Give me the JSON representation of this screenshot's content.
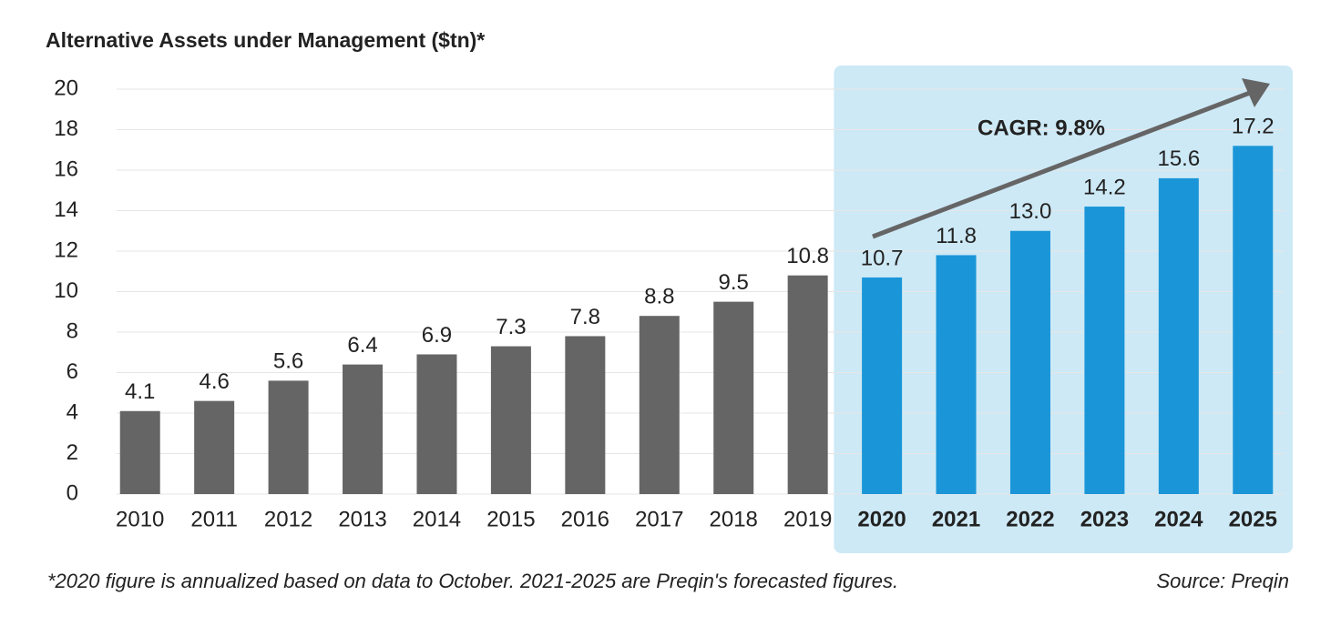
{
  "chart_data": {
    "type": "bar",
    "title": "Alternative Assets under Management ($tn)*",
    "categories": [
      "2010",
      "2011",
      "2012",
      "2013",
      "2014",
      "2015",
      "2016",
      "2017",
      "2018",
      "2019",
      "2020",
      "2021",
      "2022",
      "2023",
      "2024",
      "2025"
    ],
    "values": [
      4.1,
      4.6,
      5.6,
      6.4,
      6.9,
      7.3,
      7.8,
      8.8,
      9.5,
      10.8,
      10.7,
      11.8,
      13.0,
      14.2,
      15.6,
      17.2
    ],
    "value_labels": [
      "4.1",
      "4.6",
      "5.6",
      "6.4",
      "6.9",
      "7.3",
      "7.8",
      "8.8",
      "9.5",
      "10.8",
      "10.7",
      "11.8",
      "13.0",
      "14.2",
      "15.6",
      "17.2"
    ],
    "colors": [
      "#666566",
      "#666566",
      "#666566",
      "#666566",
      "#666566",
      "#666566",
      "#666566",
      "#666566",
      "#666566",
      "#666566",
      "#1a96d8",
      "#1a96d8",
      "#1a96d8",
      "#1a96d8",
      "#1a96d8",
      "#1a96d8"
    ],
    "highlight": {
      "from": "2020",
      "to": "2025",
      "color": "#cde9f6"
    },
    "annotation": "CAGR: 9.8%",
    "footnote": "*2020 figure is annualized based on data to October. 2021-2025 are Preqin's forecasted figures.",
    "source": "Source: Preqin",
    "ylim": [
      0,
      20
    ],
    "yticks": [
      0,
      2,
      4,
      6,
      8,
      10,
      12,
      14,
      16,
      18,
      20
    ],
    "grid": true
  }
}
